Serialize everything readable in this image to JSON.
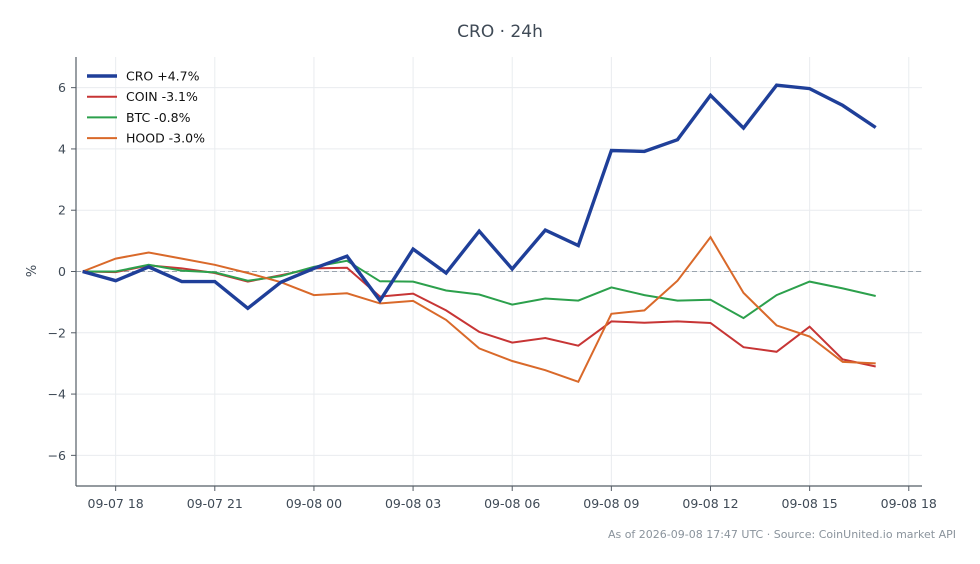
{
  "chart_data": {
    "type": "line",
    "title": "CRO · 24h",
    "xlabel": "",
    "ylabel": "%",
    "ylim": [
      -7,
      7
    ],
    "xlim": [
      "09-07 16:48",
      "09-08 18:24"
    ],
    "x_tick_labels": [
      "09-07 18",
      "09-07 21",
      "09-08 00",
      "09-08 03",
      "09-08 06",
      "09-08 09",
      "09-08 12",
      "09-08 15",
      "09-08 18"
    ],
    "y_ticks": [
      -6,
      -4,
      -2,
      0,
      2,
      4,
      6
    ],
    "y_tick_labels": [
      "−6",
      "−4",
      "−2",
      "0",
      "2",
      "4",
      "6"
    ],
    "grid": true,
    "zero_line": true,
    "legend_position": "top-left",
    "x": [
      "09-07 17",
      "09-07 18",
      "09-07 19",
      "09-07 20",
      "09-07 21",
      "09-07 22",
      "09-07 23",
      "09-08 00",
      "09-08 01",
      "09-08 02",
      "09-08 03",
      "09-08 04",
      "09-08 05",
      "09-08 06",
      "09-08 07",
      "09-08 08",
      "09-08 09",
      "09-08 10",
      "09-08 11",
      "09-08 12",
      "09-08 13",
      "09-08 14",
      "09-08 15",
      "09-08 16",
      "09-08 17"
    ],
    "series": [
      {
        "name": "CRO +4.7%",
        "color": "#1f3f99",
        "width": 3.4,
        "values": [
          0.0,
          -0.3,
          0.15,
          -0.33,
          -0.33,
          -1.2,
          -0.35,
          0.1,
          0.5,
          -0.95,
          0.73,
          -0.05,
          1.32,
          0.08,
          1.35,
          0.85,
          3.95,
          3.92,
          4.3,
          5.75,
          4.68,
          6.08,
          5.97,
          5.42,
          4.7
        ]
      },
      {
        "name": "COIN -3.1%",
        "color": "#c73535",
        "width": 2,
        "values": [
          0.0,
          -0.02,
          0.2,
          0.1,
          -0.05,
          -0.33,
          -0.12,
          0.1,
          0.12,
          -0.82,
          -0.72,
          -1.27,
          -1.97,
          -2.32,
          -2.17,
          -2.42,
          -1.63,
          -1.67,
          -1.63,
          -1.68,
          -2.47,
          -2.62,
          -1.8,
          -2.87,
          -3.1
        ]
      },
      {
        "name": "BTC -0.8%",
        "color": "#2ca04c",
        "width": 2,
        "values": [
          0.0,
          0.0,
          0.22,
          0.03,
          -0.03,
          -0.3,
          -0.15,
          0.15,
          0.35,
          -0.32,
          -0.33,
          -0.62,
          -0.75,
          -1.08,
          -0.88,
          -0.95,
          -0.52,
          -0.77,
          -0.95,
          -0.92,
          -1.52,
          -0.77,
          -0.33,
          -0.55,
          -0.8
        ]
      },
      {
        "name": "HOOD -3.0%",
        "color": "#d9692a",
        "width": 2,
        "values": [
          0.0,
          0.42,
          0.62,
          0.42,
          0.22,
          -0.05,
          -0.35,
          -0.77,
          -0.71,
          -1.04,
          -0.96,
          -1.58,
          -2.51,
          -2.92,
          -3.22,
          -3.6,
          -1.38,
          -1.27,
          -0.3,
          1.12,
          -0.7,
          -1.76,
          -2.12,
          -2.95,
          -3.0
        ]
      }
    ],
    "footer": "As of 2026-09-08 17:47 UTC · Source: CoinUnited.io market API"
  }
}
